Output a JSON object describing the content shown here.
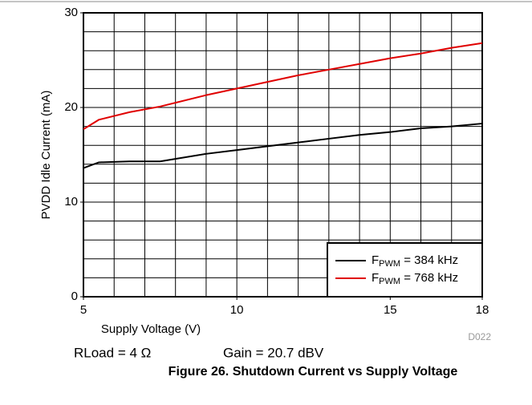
{
  "chart_data": {
    "type": "line",
    "caption": "Figure 26. Shutdown Current vs Supply Voltage",
    "xlabel": "Supply Voltage (V)",
    "ylabel": "PVDD Idle Current (mA)",
    "code": "D022",
    "annotations": [
      "RLoad = 4 Ω",
      "Gain = 20.7 dBV"
    ],
    "x": [
      5,
      5.5,
      6.5,
      7.5,
      9,
      10,
      11,
      12,
      13,
      14,
      15,
      16,
      17,
      18
    ],
    "series": [
      {
        "name_base": "F",
        "name_sub": "PWM",
        "name_rest": " = 384 kHz",
        "color": "#000000",
        "values": [
          13.6,
          14.2,
          14.3,
          14.3,
          15.1,
          15.5,
          15.9,
          16.3,
          16.7,
          17.1,
          17.4,
          17.8,
          18.0,
          18.3
        ]
      },
      {
        "name_base": "F",
        "name_sub": "PWM",
        "name_rest": " = 768 kHz",
        "color": "#e00000",
        "values": [
          17.7,
          18.7,
          19.5,
          20.1,
          21.3,
          22.0,
          22.7,
          23.4,
          24.0,
          24.6,
          25.2,
          25.7,
          26.3,
          26.8
        ]
      }
    ],
    "xlim": [
      5,
      18
    ],
    "ylim": [
      0,
      30
    ],
    "xticks": [
      5,
      10,
      15,
      18
    ],
    "yticks": [
      0,
      10,
      20,
      30
    ],
    "xgrid": [
      6,
      7,
      8,
      9,
      10,
      11,
      12,
      13,
      14,
      15,
      16,
      17
    ],
    "ygrid": [
      2,
      4,
      6,
      8,
      10,
      12,
      14,
      16,
      18,
      20,
      22,
      24,
      26,
      28
    ],
    "grid": true,
    "legend": "lower right"
  }
}
